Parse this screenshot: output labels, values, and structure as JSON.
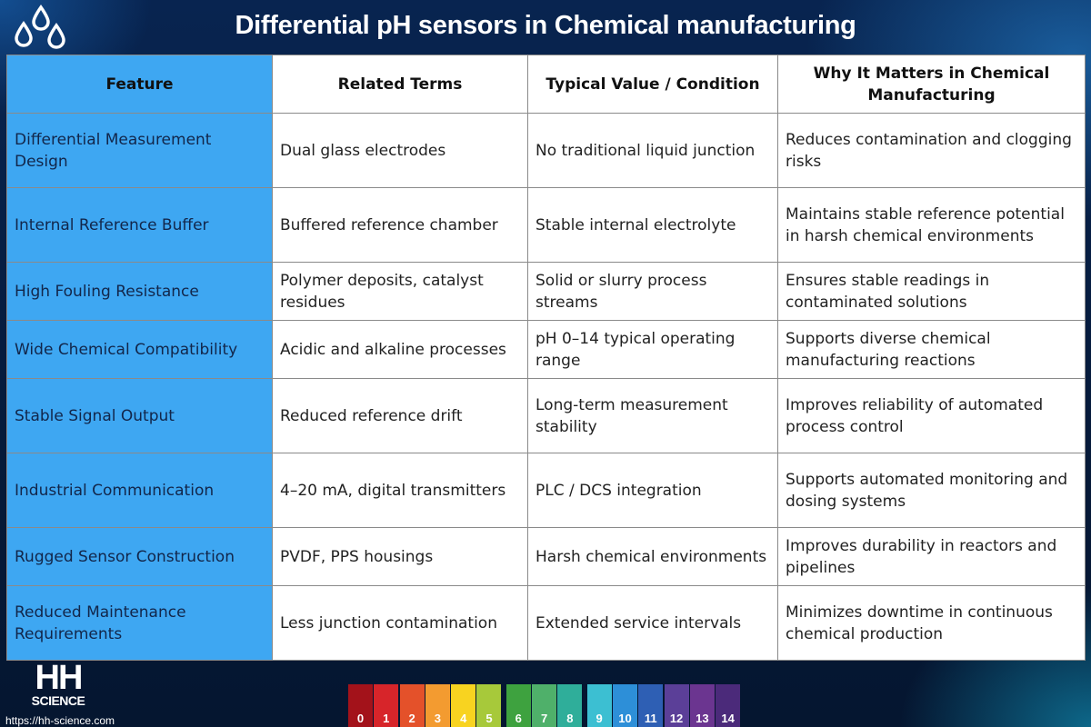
{
  "title": "Differential pH sensors in Chemical manufacturing",
  "table": {
    "headers": [
      "Feature",
      "Related Terms",
      "Typical Value / Condition",
      "Why It Matters in Chemical Manufacturing"
    ],
    "rows": [
      [
        "Differential Measurement Design",
        "Dual glass electrodes",
        "No traditional liquid junction",
        "Reduces contamination and clogging risks"
      ],
      [
        "Internal Reference Buffer",
        "Buffered reference chamber",
        "Stable internal electrolyte",
        "Maintains stable reference potential in harsh chemical environments"
      ],
      [
        "High Fouling Resistance",
        "Polymer deposits, catalyst residues",
        "Solid or slurry process streams",
        "Ensures stable readings in contaminated solutions"
      ],
      [
        "Wide Chemical Compatibility",
        "Acidic and alkaline processes",
        "pH 0–14 typical operating range",
        "Supports diverse chemical manufacturing reactions"
      ],
      [
        "Stable Signal Output",
        "Reduced reference drift",
        "Long-term measurement stability",
        "Improves reliability of automated process control"
      ],
      [
        "Industrial Communication",
        "4–20 mA, digital transmitters",
        "PLC / DCS integration",
        "Supports automated monitoring and dosing systems"
      ],
      [
        "Rugged Sensor Construction",
        "PVDF, PPS housings",
        "Harsh chemical environments",
        "Improves durability in reactors and pipelines"
      ],
      [
        "Reduced Maintenance Requirements",
        "Less junction contamination",
        "Extended service intervals",
        "Minimizes downtime in continuous chemical production"
      ]
    ]
  },
  "logo": {
    "line1": "HH",
    "line2": "SCIENCE"
  },
  "url": "https://hh-science.com",
  "ph_scale": {
    "labels": [
      "0",
      "1",
      "2",
      "3",
      "4",
      "5",
      "6",
      "7",
      "8",
      "9",
      "10",
      "11",
      "12",
      "13",
      "14"
    ],
    "colors": [
      "#a3121a",
      "#d7252a",
      "#e4512a",
      "#f39b30",
      "#f8d320",
      "#a7c93a",
      "#3ea23f",
      "#4fb06a",
      "#2fae9a",
      "#3cbfd2",
      "#2d8fd8",
      "#2e5fb4",
      "#5b3f98",
      "#6b3590",
      "#4b2a7a"
    ]
  },
  "colors": {
    "background": "#061a3a",
    "feature_column": "#3ea7f2",
    "table_border": "#8a8a8a"
  }
}
